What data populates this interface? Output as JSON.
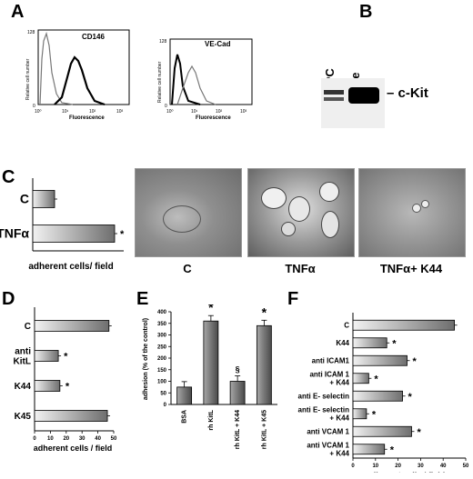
{
  "panel_labels": {
    "a": "A",
    "b": "B",
    "c": "C",
    "d": "D",
    "e": "E",
    "f": "F"
  },
  "panel_a": {
    "plot1": {
      "title": "CD146",
      "ylabel": "Relative cell number",
      "xlabel": "Fluorescence",
      "ymax": "128",
      "ytick0": "0",
      "xticks": [
        "10⁰",
        "10¹",
        "10²",
        "10³"
      ]
    },
    "plot2": {
      "title": "VE-Cad",
      "ylabel": "Relative cell number",
      "xlabel": "Fluorescence",
      "ymax": "128",
      "ytick0": "0",
      "xticks": [
        "10⁰",
        "10¹",
        "10²",
        "10³"
      ]
    }
  },
  "panel_b": {
    "lanes": [
      "EPC",
      "M07e"
    ],
    "band_label": "c-Kit"
  },
  "panel_c": {
    "photo_captions": [
      "C",
      "TNFα",
      "TNFα+ K44"
    ]
  },
  "chart_data": [
    {
      "type": "bar",
      "panel": "C",
      "orientation": "horizontal",
      "categories": [
        "C",
        "TNFα"
      ],
      "values": [
        12,
        45
      ],
      "significance": [
        "",
        "*"
      ],
      "xlabel": "adherent cells/ field",
      "colors": {
        "bar_light": "#f2f2f2",
        "bar_dark": "#6e6e6e"
      }
    },
    {
      "type": "bar",
      "panel": "D",
      "orientation": "horizontal",
      "categories": [
        "C",
        "anti KitL",
        "K44",
        "K45"
      ],
      "values": [
        47,
        15,
        16,
        46
      ],
      "significance": [
        "",
        "*",
        "*",
        ""
      ],
      "xlabel": "adherent cells / field",
      "xticks": [
        "0",
        "10",
        "20",
        "30",
        "40",
        "50"
      ],
      "xlim": [
        0,
        50
      ]
    },
    {
      "type": "bar",
      "panel": "E",
      "orientation": "vertical",
      "categories": [
        "BSA",
        "rh KitL",
        "rh KitL + K44",
        "rh KitL + K45"
      ],
      "values": [
        75,
        360,
        100,
        340
      ],
      "significance": [
        "",
        "*",
        "§",
        "*"
      ],
      "ylabel": "adhesion (% of the control)",
      "yticks": [
        "0",
        "50",
        "100",
        "150",
        "200",
        "250",
        "300",
        "350",
        "400"
      ],
      "ylim": [
        0,
        400
      ]
    },
    {
      "type": "bar",
      "panel": "F",
      "orientation": "horizontal",
      "categories": [
        "C",
        "K44",
        "anti ICAM1",
        "anti ICAM 1 + K44",
        "anti E- selectin",
        "anti E- selectin + K44",
        "anti VCAM 1",
        "anti VCAM 1 + K44"
      ],
      "values": [
        45,
        15,
        24,
        7,
        22,
        6,
        26,
        14
      ],
      "significance": [
        "",
        "*",
        "*",
        "*",
        "*",
        "*",
        "*",
        "*"
      ],
      "xlabel": "adherent cells / field",
      "xticks": [
        "0",
        "10",
        "20",
        "30",
        "40",
        "50"
      ],
      "xlim": [
        0,
        50
      ]
    }
  ]
}
